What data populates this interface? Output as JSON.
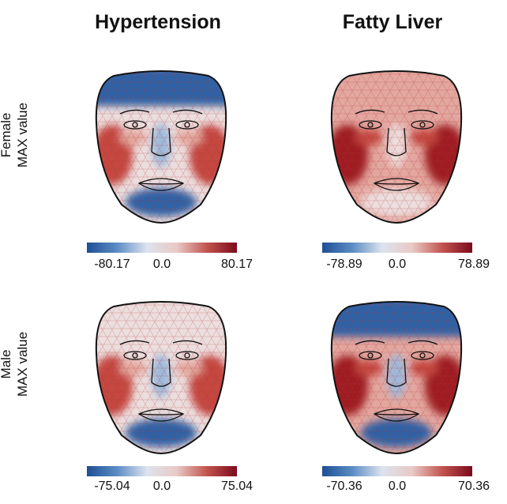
{
  "columns": [
    {
      "title": "Hypertension"
    },
    {
      "title": "Fatty Liver"
    }
  ],
  "rows": [
    {
      "label_line1": "Female",
      "label_line2": "MAX value"
    },
    {
      "label_line1": "Male",
      "label_line2": "MAX value"
    }
  ],
  "colorbars": [
    {
      "min": "-80.17",
      "mid": "0.0",
      "max": "80.17"
    },
    {
      "min": "-78.89",
      "mid": "0.0",
      "max": "78.89"
    },
    {
      "min": "-75.04",
      "mid": "0.0",
      "max": "75.04"
    },
    {
      "min": "-70.36",
      "mid": "0.0",
      "max": "70.36"
    }
  ],
  "colormap": {
    "negative": "#1f4e94",
    "zero": "#dde3ee",
    "positive": "#7c0a1c"
  }
}
